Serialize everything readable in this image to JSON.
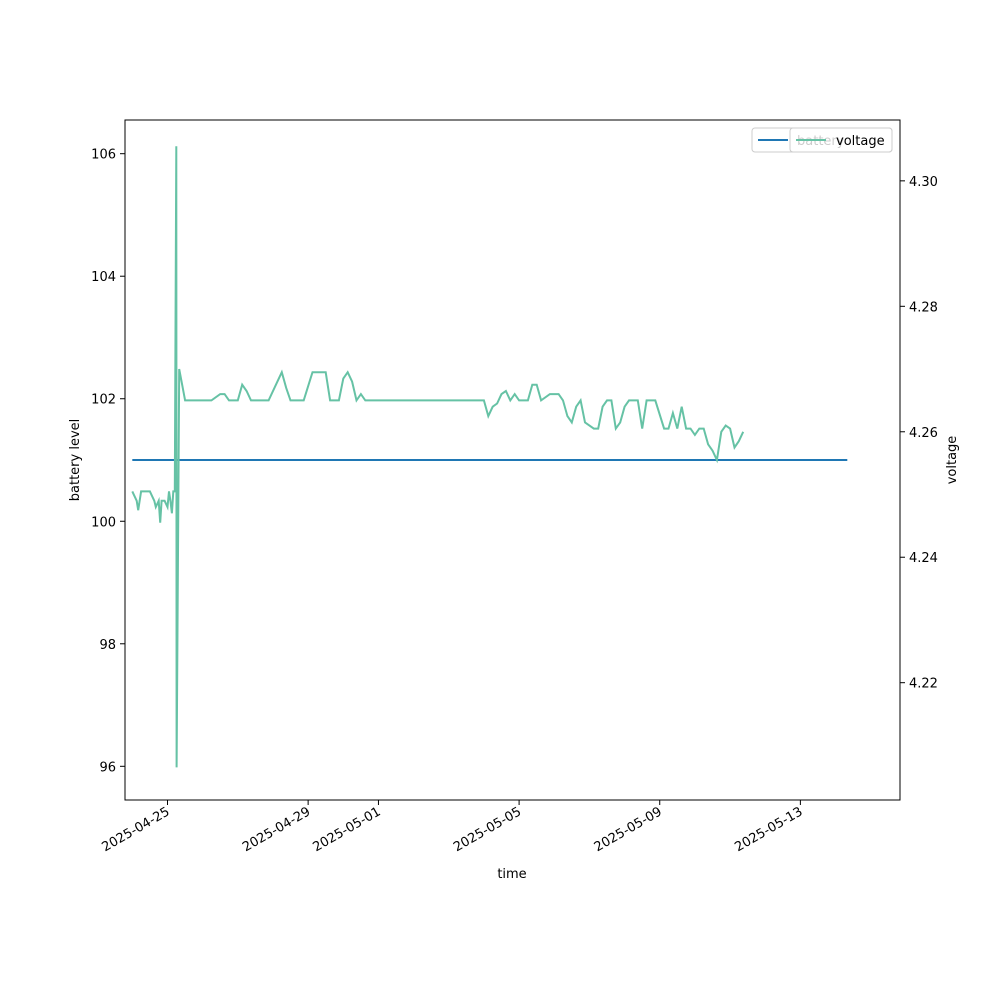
{
  "chart_data": {
    "type": "line",
    "xlabel": "time",
    "ylabel": "battery level",
    "y2label": "voltage",
    "xlim": [
      "2025-04-23T19:00",
      "2025-05-15T20:00"
    ],
    "ylim": [
      95.45,
      106.55
    ],
    "y2lim": [
      4.2013,
      4.3097
    ],
    "x_ticks": [
      "2025-04-25",
      "2025-04-29",
      "2025-05-01",
      "2025-05-05",
      "2025-05-09",
      "2025-05-13"
    ],
    "y_ticks": [
      96,
      98,
      100,
      102,
      104,
      106
    ],
    "y2_ticks": [
      "4.22",
      "4.24",
      "4.26",
      "4.28",
      "4.30"
    ],
    "legend_placement": "upper right",
    "series": [
      {
        "name": "battery",
        "axis": "left",
        "color": "#1f77b4",
        "points": [
          [
            "2025-04-24T00:00",
            101
          ],
          [
            "2025-05-14T08:00",
            101
          ]
        ]
      },
      {
        "name": "voltage",
        "axis": "right",
        "color": "#66c2a5",
        "points": [
          [
            "2025-04-24T00:00",
            4.2505
          ],
          [
            "2025-04-24T03:00",
            4.249
          ],
          [
            "2025-04-24T04:00",
            4.2475
          ],
          [
            "2025-04-24T06:00",
            4.2505
          ],
          [
            "2025-04-24T12:00",
            4.2505
          ],
          [
            "2025-04-24T15:00",
            4.249
          ],
          [
            "2025-04-24T16:00",
            4.248
          ],
          [
            "2025-04-24T18:00",
            4.249
          ],
          [
            "2025-04-24T19:00",
            4.2455
          ],
          [
            "2025-04-24T20:00",
            4.249
          ],
          [
            "2025-04-24T22:00",
            4.249
          ],
          [
            "2025-04-25T00:00",
            4.248
          ],
          [
            "2025-04-25T01:00",
            4.2505
          ],
          [
            "2025-04-25T02:00",
            4.249
          ],
          [
            "2025-04-25T03:00",
            4.247
          ],
          [
            "2025-04-25T04:00",
            4.2505
          ],
          [
            "2025-04-25T05:00",
            4.2505
          ],
          [
            "2025-04-25T06:00",
            4.3055
          ],
          [
            "2025-04-25T06:15",
            4.2065
          ],
          [
            "2025-04-25T08:00",
            4.27
          ],
          [
            "2025-04-25T12:00",
            4.265
          ],
          [
            "2025-04-26T06:00",
            4.265
          ],
          [
            "2025-04-26T12:00",
            4.266
          ],
          [
            "2025-04-26T15:00",
            4.266
          ],
          [
            "2025-04-26T18:00",
            4.265
          ],
          [
            "2025-04-27T00:00",
            4.265
          ],
          [
            "2025-04-27T03:00",
            4.2675
          ],
          [
            "2025-04-27T06:00",
            4.2665
          ],
          [
            "2025-04-27T09:00",
            4.265
          ],
          [
            "2025-04-27T21:00",
            4.265
          ],
          [
            "2025-04-28T03:00",
            4.268
          ],
          [
            "2025-04-28T06:00",
            4.2695
          ],
          [
            "2025-04-28T09:00",
            4.267
          ],
          [
            "2025-04-28T12:00",
            4.265
          ],
          [
            "2025-04-28T21:00",
            4.265
          ],
          [
            "2025-04-29T03:00",
            4.2695
          ],
          [
            "2025-04-29T06:00",
            4.2695
          ],
          [
            "2025-04-29T12:00",
            4.2695
          ],
          [
            "2025-04-29T15:00",
            4.265
          ],
          [
            "2025-04-29T21:00",
            4.265
          ],
          [
            "2025-04-30T00:00",
            4.2685
          ],
          [
            "2025-04-30T03:00",
            4.2695
          ],
          [
            "2025-04-30T06:00",
            4.268
          ],
          [
            "2025-04-30T09:00",
            4.265
          ],
          [
            "2025-04-30T12:00",
            4.266
          ],
          [
            "2025-04-30T15:00",
            4.265
          ],
          [
            "2025-05-04T00:00",
            4.265
          ],
          [
            "2025-05-04T03:00",
            4.2625
          ],
          [
            "2025-05-04T06:00",
            4.264
          ],
          [
            "2025-05-04T09:00",
            4.2645
          ],
          [
            "2025-05-04T12:00",
            4.266
          ],
          [
            "2025-05-04T15:00",
            4.2665
          ],
          [
            "2025-05-04T18:00",
            4.265
          ],
          [
            "2025-05-04T21:00",
            4.266
          ],
          [
            "2025-05-05T00:00",
            4.265
          ],
          [
            "2025-05-05T06:00",
            4.265
          ],
          [
            "2025-05-05T09:00",
            4.2675
          ],
          [
            "2025-05-05T12:00",
            4.2675
          ],
          [
            "2025-05-05T15:00",
            4.265
          ],
          [
            "2025-05-05T21:00",
            4.266
          ],
          [
            "2025-05-06T03:00",
            4.266
          ],
          [
            "2025-05-06T06:00",
            4.265
          ],
          [
            "2025-05-06T09:00",
            4.2625
          ],
          [
            "2025-05-06T12:00",
            4.2615
          ],
          [
            "2025-05-06T15:00",
            4.264
          ],
          [
            "2025-05-06T18:00",
            4.265
          ],
          [
            "2025-05-06T21:00",
            4.2615
          ],
          [
            "2025-05-07T03:00",
            4.2605
          ],
          [
            "2025-05-07T06:00",
            4.2605
          ],
          [
            "2025-05-07T09:00",
            4.264
          ],
          [
            "2025-05-07T12:00",
            4.265
          ],
          [
            "2025-05-07T15:00",
            4.265
          ],
          [
            "2025-05-07T18:00",
            4.2605
          ],
          [
            "2025-05-07T21:00",
            4.2615
          ],
          [
            "2025-05-08T00:00",
            4.264
          ],
          [
            "2025-05-08T03:00",
            4.265
          ],
          [
            "2025-05-08T09:00",
            4.265
          ],
          [
            "2025-05-08T12:00",
            4.2605
          ],
          [
            "2025-05-08T15:00",
            4.265
          ],
          [
            "2025-05-08T21:00",
            4.265
          ],
          [
            "2025-05-09T03:00",
            4.2605
          ],
          [
            "2025-05-09T06:00",
            4.2605
          ],
          [
            "2025-05-09T09:00",
            4.263
          ],
          [
            "2025-05-09T12:00",
            4.2605
          ],
          [
            "2025-05-09T15:00",
            4.264
          ],
          [
            "2025-05-09T18:00",
            4.2605
          ],
          [
            "2025-05-09T21:00",
            4.2605
          ],
          [
            "2025-05-10T00:00",
            4.2595
          ],
          [
            "2025-05-10T03:00",
            4.2605
          ],
          [
            "2025-05-10T06:00",
            4.2605
          ],
          [
            "2025-05-10T09:00",
            4.258
          ],
          [
            "2025-05-10T12:00",
            4.257
          ],
          [
            "2025-05-10T15:00",
            4.2555
          ],
          [
            "2025-05-10T18:00",
            4.26
          ],
          [
            "2025-05-10T21:00",
            4.261
          ],
          [
            "2025-05-11T00:00",
            4.2605
          ],
          [
            "2025-05-11T03:00",
            4.2575
          ],
          [
            "2025-05-11T06:00",
            4.2585
          ],
          [
            "2025-05-11T09:00",
            4.26
          ]
        ]
      }
    ]
  }
}
